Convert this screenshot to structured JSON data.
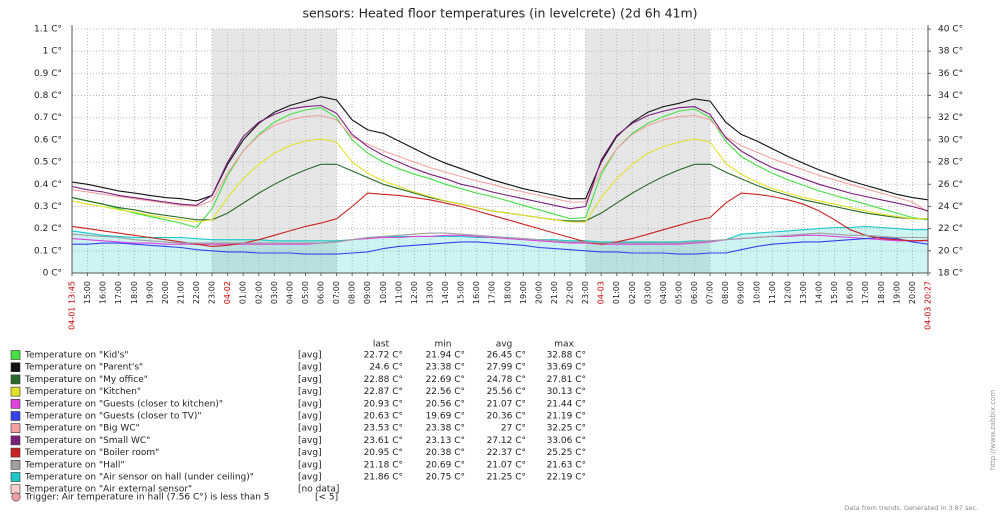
{
  "chart_data": {
    "type": "line",
    "title": "sensors: Heated floor temperatures (in levelcrete) (2d 6h 41m)",
    "categories": [
      "04-01 13:45",
      "15:00",
      "16:00",
      "17:00",
      "18:00",
      "19:00",
      "20:00",
      "21:00",
      "22:00",
      "23:00",
      "04-02",
      "01:00",
      "02:00",
      "03:00",
      "04:00",
      "05:00",
      "06:00",
      "07:00",
      "08:00",
      "09:00",
      "10:00",
      "11:00",
      "12:00",
      "13:00",
      "14:00",
      "15:00",
      "16:00",
      "17:00",
      "18:00",
      "19:00",
      "20:00",
      "21:00",
      "22:00",
      "23:00",
      "04-03",
      "01:00",
      "02:00",
      "03:00",
      "04:00",
      "05:00",
      "06:00",
      "07:00",
      "08:00",
      "09:00",
      "10:00",
      "11:00",
      "12:00",
      "13:00",
      "14:00",
      "15:00",
      "16:00",
      "17:00",
      "18:00",
      "19:00",
      "20:00",
      "04-03 20:27"
    ],
    "ylim": [
      0,
      1.1
    ],
    "yticks": [
      {
        "value": 0,
        "label": "0 C°"
      },
      {
        "value": 0.1,
        "label": "0.1 C°"
      },
      {
        "value": 0.2,
        "label": "0.2 C°"
      },
      {
        "value": 0.3,
        "label": "0.3 C°"
      },
      {
        "value": 0.4,
        "label": "0.4 C°"
      },
      {
        "value": 0.5,
        "label": "0.5 C°"
      },
      {
        "value": 0.6,
        "label": "0.6 C°"
      },
      {
        "value": 0.7,
        "label": "0.7 C°"
      },
      {
        "value": 0.8,
        "label": "0.8 C°"
      },
      {
        "value": 0.9,
        "label": "0.9 C°"
      },
      {
        "value": 1.0,
        "label": "1 C°"
      },
      {
        "value": 1.1,
        "label": "1.1 C°"
      }
    ],
    "y2lim": [
      18,
      40
    ],
    "y2ticks": [
      {
        "value": 18,
        "label": "18 C°"
      },
      {
        "value": 20,
        "label": "20 C°"
      },
      {
        "value": 22,
        "label": "22 C°"
      },
      {
        "value": 24,
        "label": "24 C°"
      },
      {
        "value": 26,
        "label": "26 C°"
      },
      {
        "value": 28,
        "label": "28 C°"
      },
      {
        "value": 30,
        "label": "30 C°"
      },
      {
        "value": 32,
        "label": "32 C°"
      },
      {
        "value": 34,
        "label": "34 C°"
      },
      {
        "value": 36,
        "label": "36 C°"
      },
      {
        "value": 38,
        "label": "38 C°"
      },
      {
        "value": 40,
        "label": "40 C°"
      }
    ],
    "grid": true,
    "legend_headers": [
      "last",
      "min",
      "avg",
      "max"
    ],
    "series": [
      {
        "name": "Temperature on \"Kid's\"",
        "color": "#44e044",
        "axis": "y2",
        "function": "[avg]",
        "stats": [
          "22.72 C°",
          "21.94 C°",
          "26.45 C°",
          "32.88 C°"
        ],
        "values": [
          24.8,
          24.5,
          24.2,
          23.8,
          23.4,
          23.1,
          22.8,
          22.5,
          22.1,
          23.8,
          26.8,
          29.0,
          30.5,
          31.6,
          32.3,
          32.7,
          32.9,
          32.0,
          30.0,
          28.8,
          28.0,
          27.4,
          26.9,
          26.5,
          26.0,
          25.6,
          25.2,
          24.9,
          24.5,
          24.1,
          23.7,
          23.3,
          22.9,
          23.0,
          26.9,
          29.2,
          30.6,
          31.5,
          32.1,
          32.6,
          32.8,
          32.0,
          29.9,
          28.5,
          27.7,
          27.0,
          26.4,
          25.9,
          25.4,
          25.0,
          24.6,
          24.2,
          23.8,
          23.4,
          23.0,
          22.8
        ]
      },
      {
        "name": "Temperature on \"Parent's\"",
        "color": "#111111",
        "axis": "y2",
        "function": "[avg]",
        "stats": [
          "24.6 C°",
          "23.38 C°",
          "27.99 C°",
          "33.69 C°"
        ],
        "values": [
          26.2,
          26.0,
          25.7,
          25.4,
          25.2,
          25.0,
          24.8,
          24.7,
          24.5,
          25.0,
          27.8,
          30.0,
          31.5,
          32.5,
          33.1,
          33.5,
          33.9,
          33.6,
          31.8,
          30.9,
          30.6,
          29.9,
          29.2,
          28.5,
          27.9,
          27.4,
          26.9,
          26.4,
          26.0,
          25.6,
          25.3,
          25.0,
          24.7,
          24.7,
          28.0,
          30.3,
          31.6,
          32.5,
          33.0,
          33.3,
          33.7,
          33.5,
          31.6,
          30.5,
          29.9,
          29.2,
          28.5,
          27.9,
          27.3,
          26.8,
          26.3,
          25.9,
          25.5,
          25.1,
          24.8,
          24.6
        ]
      },
      {
        "name": "Temperature on \"My office\"",
        "color": "#2a6a2a",
        "axis": "y2",
        "function": "[avg]",
        "stats": [
          "22.88 C°",
          "22.69 C°",
          "24.78 C°",
          "27.81 C°"
        ],
        "values": [
          24.8,
          24.5,
          24.2,
          23.9,
          23.7,
          23.4,
          23.2,
          23.0,
          22.8,
          22.8,
          23.4,
          24.3,
          25.2,
          26.0,
          26.7,
          27.3,
          27.8,
          27.8,
          27.2,
          26.6,
          26.0,
          25.6,
          25.2,
          24.8,
          24.5,
          24.2,
          23.9,
          23.6,
          23.4,
          23.2,
          23.0,
          22.8,
          22.7,
          22.7,
          23.4,
          24.3,
          25.2,
          26.0,
          26.7,
          27.3,
          27.8,
          27.8,
          27.1,
          26.5,
          25.9,
          25.4,
          25.0,
          24.6,
          24.3,
          24.0,
          23.7,
          23.4,
          23.2,
          23.0,
          22.9,
          22.9
        ]
      },
      {
        "name": "Temperature on \"Kitchen\"",
        "color": "#e2e22a",
        "axis": "y2",
        "function": "[avg]",
        "stats": [
          "22.87 C°",
          "22.56 C°",
          "25.56 C°",
          "30.13 C°"
        ],
        "values": [
          24.5,
          24.2,
          24.0,
          23.7,
          23.5,
          23.2,
          23.0,
          22.8,
          22.6,
          22.8,
          24.8,
          26.5,
          27.8,
          28.8,
          29.5,
          29.9,
          30.1,
          29.8,
          28.0,
          27.0,
          26.3,
          25.8,
          25.3,
          24.9,
          24.5,
          24.2,
          23.9,
          23.6,
          23.4,
          23.2,
          23.0,
          22.8,
          22.6,
          22.6,
          24.8,
          26.5,
          27.8,
          28.8,
          29.4,
          29.8,
          30.1,
          29.8,
          27.9,
          26.9,
          26.2,
          25.6,
          25.2,
          24.8,
          24.5,
          24.2,
          23.9,
          23.6,
          23.3,
          23.1,
          22.9,
          22.9
        ]
      },
      {
        "name": "Temperature on \"Guests (closer to kitchen)\"",
        "color": "#dd44dd",
        "axis": "y2",
        "function": "[avg]",
        "stats": [
          "20.93 C°",
          "20.56 C°",
          "21.07 C°",
          "21.44 C°"
        ],
        "values": [
          21.1,
          21.0,
          20.9,
          20.8,
          20.7,
          20.7,
          20.6,
          20.6,
          20.6,
          20.6,
          20.6,
          20.6,
          20.6,
          20.6,
          20.6,
          20.6,
          20.7,
          20.8,
          21.0,
          21.1,
          21.2,
          21.2,
          21.3,
          21.3,
          21.4,
          21.4,
          21.3,
          21.2,
          21.1,
          21.0,
          20.9,
          20.8,
          20.7,
          20.7,
          20.6,
          20.6,
          20.6,
          20.6,
          20.6,
          20.6,
          20.7,
          20.8,
          21.0,
          21.1,
          21.2,
          21.3,
          21.3,
          21.4,
          21.4,
          21.3,
          21.2,
          21.1,
          21.0,
          20.9,
          20.9,
          20.9
        ]
      },
      {
        "name": "Temperature on \"Guests (closer to TV)\"",
        "color": "#3344ee",
        "axis": "y2",
        "function": "[avg]",
        "stats": [
          "20.63 C°",
          "19.69 C°",
          "20.36 C°",
          "21.19 C°"
        ],
        "values": [
          20.6,
          20.6,
          20.7,
          20.7,
          20.6,
          20.5,
          20.4,
          20.3,
          20.1,
          20.0,
          19.9,
          19.9,
          19.8,
          19.8,
          19.8,
          19.7,
          19.7,
          19.7,
          19.8,
          19.9,
          20.2,
          20.4,
          20.5,
          20.6,
          20.7,
          20.8,
          20.8,
          20.7,
          20.6,
          20.5,
          20.3,
          20.2,
          20.1,
          20.0,
          19.9,
          19.9,
          19.8,
          19.8,
          19.8,
          19.7,
          19.7,
          19.8,
          19.8,
          20.1,
          20.4,
          20.6,
          20.7,
          20.8,
          20.8,
          20.9,
          21.0,
          21.1,
          21.2,
          21.1,
          20.8,
          20.6
        ]
      },
      {
        "name": "Temperature on \"Big WC\"",
        "color": "#f2a2a2",
        "axis": "y2",
        "function": "[avg]",
        "stats": [
          "23.53 C°",
          "23.38 C°",
          "27 C°",
          "32.25 C°"
        ],
        "values": [
          25.5,
          25.3,
          25.1,
          24.9,
          24.7,
          24.5,
          24.3,
          24.1,
          24.0,
          24.5,
          27.0,
          29.0,
          30.4,
          31.3,
          31.8,
          32.1,
          32.2,
          31.8,
          30.3,
          29.6,
          29.0,
          28.5,
          28.0,
          27.5,
          27.1,
          26.7,
          26.3,
          26.0,
          25.6,
          25.3,
          25.0,
          24.7,
          24.4,
          24.4,
          27.2,
          29.2,
          30.5,
          31.3,
          31.8,
          32.1,
          32.2,
          31.8,
          30.3,
          29.5,
          28.9,
          28.3,
          27.8,
          27.3,
          26.8,
          26.4,
          26.0,
          25.6,
          25.2,
          24.8,
          24.4,
          23.5
        ]
      },
      {
        "name": "Temperature on \"Small WC\"",
        "color": "#7a1f7a",
        "axis": "y2",
        "function": "[avg]",
        "stats": [
          "23.61 C°",
          "23.13 C°",
          "27.12 C°",
          "33.06 C°"
        ],
        "values": [
          25.8,
          25.5,
          25.3,
          25.0,
          24.8,
          24.6,
          24.4,
          24.2,
          24.1,
          25.0,
          28.0,
          30.3,
          31.6,
          32.3,
          32.8,
          33.0,
          33.1,
          32.4,
          30.5,
          29.4,
          28.6,
          28.0,
          27.4,
          26.9,
          26.5,
          26.0,
          25.7,
          25.3,
          25.0,
          24.7,
          24.4,
          24.1,
          23.8,
          24.0,
          28.2,
          30.4,
          31.5,
          32.2,
          32.6,
          32.9,
          33.0,
          32.3,
          30.2,
          29.0,
          28.2,
          27.5,
          27.0,
          26.5,
          26.0,
          25.6,
          25.2,
          24.9,
          24.6,
          24.3,
          24.0,
          23.6
        ]
      },
      {
        "name": "Temperature on \"Boiler room\"",
        "color": "#cc2222",
        "axis": "y2",
        "function": "[avg]",
        "stats": [
          "20.95 C°",
          "20.38 C°",
          "22.37 C°",
          "25.25 C°"
        ],
        "values": [
          22.2,
          22.0,
          21.8,
          21.6,
          21.4,
          21.2,
          21.0,
          20.8,
          20.6,
          20.4,
          20.5,
          20.7,
          21.0,
          21.4,
          21.8,
          22.2,
          22.5,
          22.9,
          24.0,
          25.2,
          25.1,
          25.0,
          24.8,
          24.6,
          24.3,
          24.0,
          23.6,
          23.2,
          22.8,
          22.4,
          22.0,
          21.6,
          21.2,
          20.8,
          20.6,
          20.8,
          21.1,
          21.5,
          21.9,
          22.3,
          22.7,
          23.0,
          24.3,
          25.2,
          25.1,
          24.9,
          24.6,
          24.2,
          23.6,
          22.8,
          21.9,
          21.4,
          21.1,
          21.0,
          20.9,
          20.95
        ]
      },
      {
        "name": "Temperature on \"Hall\"",
        "color": "#a0a0a0",
        "axis": "y2",
        "function": "[avg]",
        "stats": [
          "21.18 C°",
          "20.69 C°",
          "21.07 C°",
          "21.63 C°"
        ],
        "values": [
          21.5,
          21.4,
          21.3,
          21.2,
          21.0,
          20.9,
          20.8,
          20.7,
          20.7,
          20.7,
          20.7,
          20.7,
          20.7,
          20.7,
          20.7,
          20.7,
          20.7,
          20.8,
          21.0,
          21.2,
          21.3,
          21.4,
          21.5,
          21.6,
          21.6,
          21.5,
          21.4,
          21.3,
          21.2,
          21.1,
          21.0,
          20.9,
          20.8,
          20.8,
          20.7,
          20.7,
          20.7,
          20.7,
          20.7,
          20.7,
          20.8,
          20.9,
          21.0,
          21.1,
          21.2,
          21.3,
          21.4,
          21.5,
          21.6,
          21.5,
          21.4,
          21.4,
          21.3,
          21.2,
          21.2,
          21.2
        ]
      },
      {
        "name": "Temperature on \"Air sensor on hall (under ceiling)\"",
        "color": "#1ec8c8",
        "axis": "y2",
        "area": true,
        "function": "[avg]",
        "stats": [
          "21.86 C°",
          "20.75 C°",
          "21.25 C°",
          "22.19 C°"
        ],
        "values": [
          21.8,
          21.6,
          21.4,
          21.3,
          21.2,
          21.2,
          21.2,
          21.2,
          21.1,
          21.0,
          21.0,
          21.0,
          21.0,
          20.9,
          20.9,
          20.9,
          20.9,
          20.9,
          21.0,
          21.2,
          21.3,
          21.3,
          21.3,
          21.3,
          21.3,
          21.3,
          21.2,
          21.2,
          21.2,
          21.1,
          21.0,
          21.0,
          20.9,
          20.9,
          20.8,
          20.8,
          20.8,
          20.8,
          20.8,
          20.8,
          20.9,
          20.9,
          21.0,
          21.5,
          21.6,
          21.7,
          21.8,
          21.9,
          22.0,
          22.1,
          22.1,
          22.2,
          22.1,
          22.0,
          21.9,
          21.9
        ]
      },
      {
        "name": "Temperature on \"Air external sensor\"",
        "color": "#f8cccc",
        "axis": "y",
        "status": "[no data]"
      }
    ],
    "trigger": {
      "text": "Trigger: Air temperature in hall (7.56 C°) is less than 5",
      "condition": "[< 5]",
      "color": "#f0a0a0"
    },
    "footer": "Data from trends. Generated in 3.87 sec.",
    "watermark": "http://www.zabbix.com"
  }
}
